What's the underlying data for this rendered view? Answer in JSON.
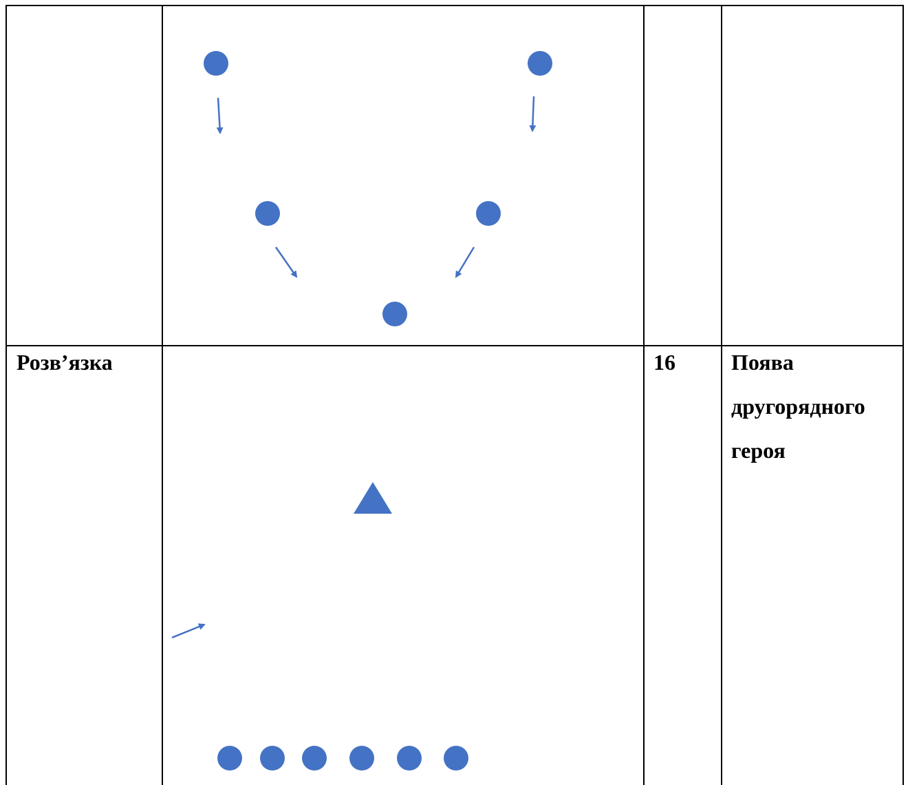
{
  "table": {
    "row2": {
      "stage_label": "Розв’язка",
      "number": "16",
      "description_lines": [
        "Поява",
        "другорядного",
        "героя"
      ]
    }
  },
  "colors": {
    "figure": "#4472c4",
    "border": "#000000"
  }
}
